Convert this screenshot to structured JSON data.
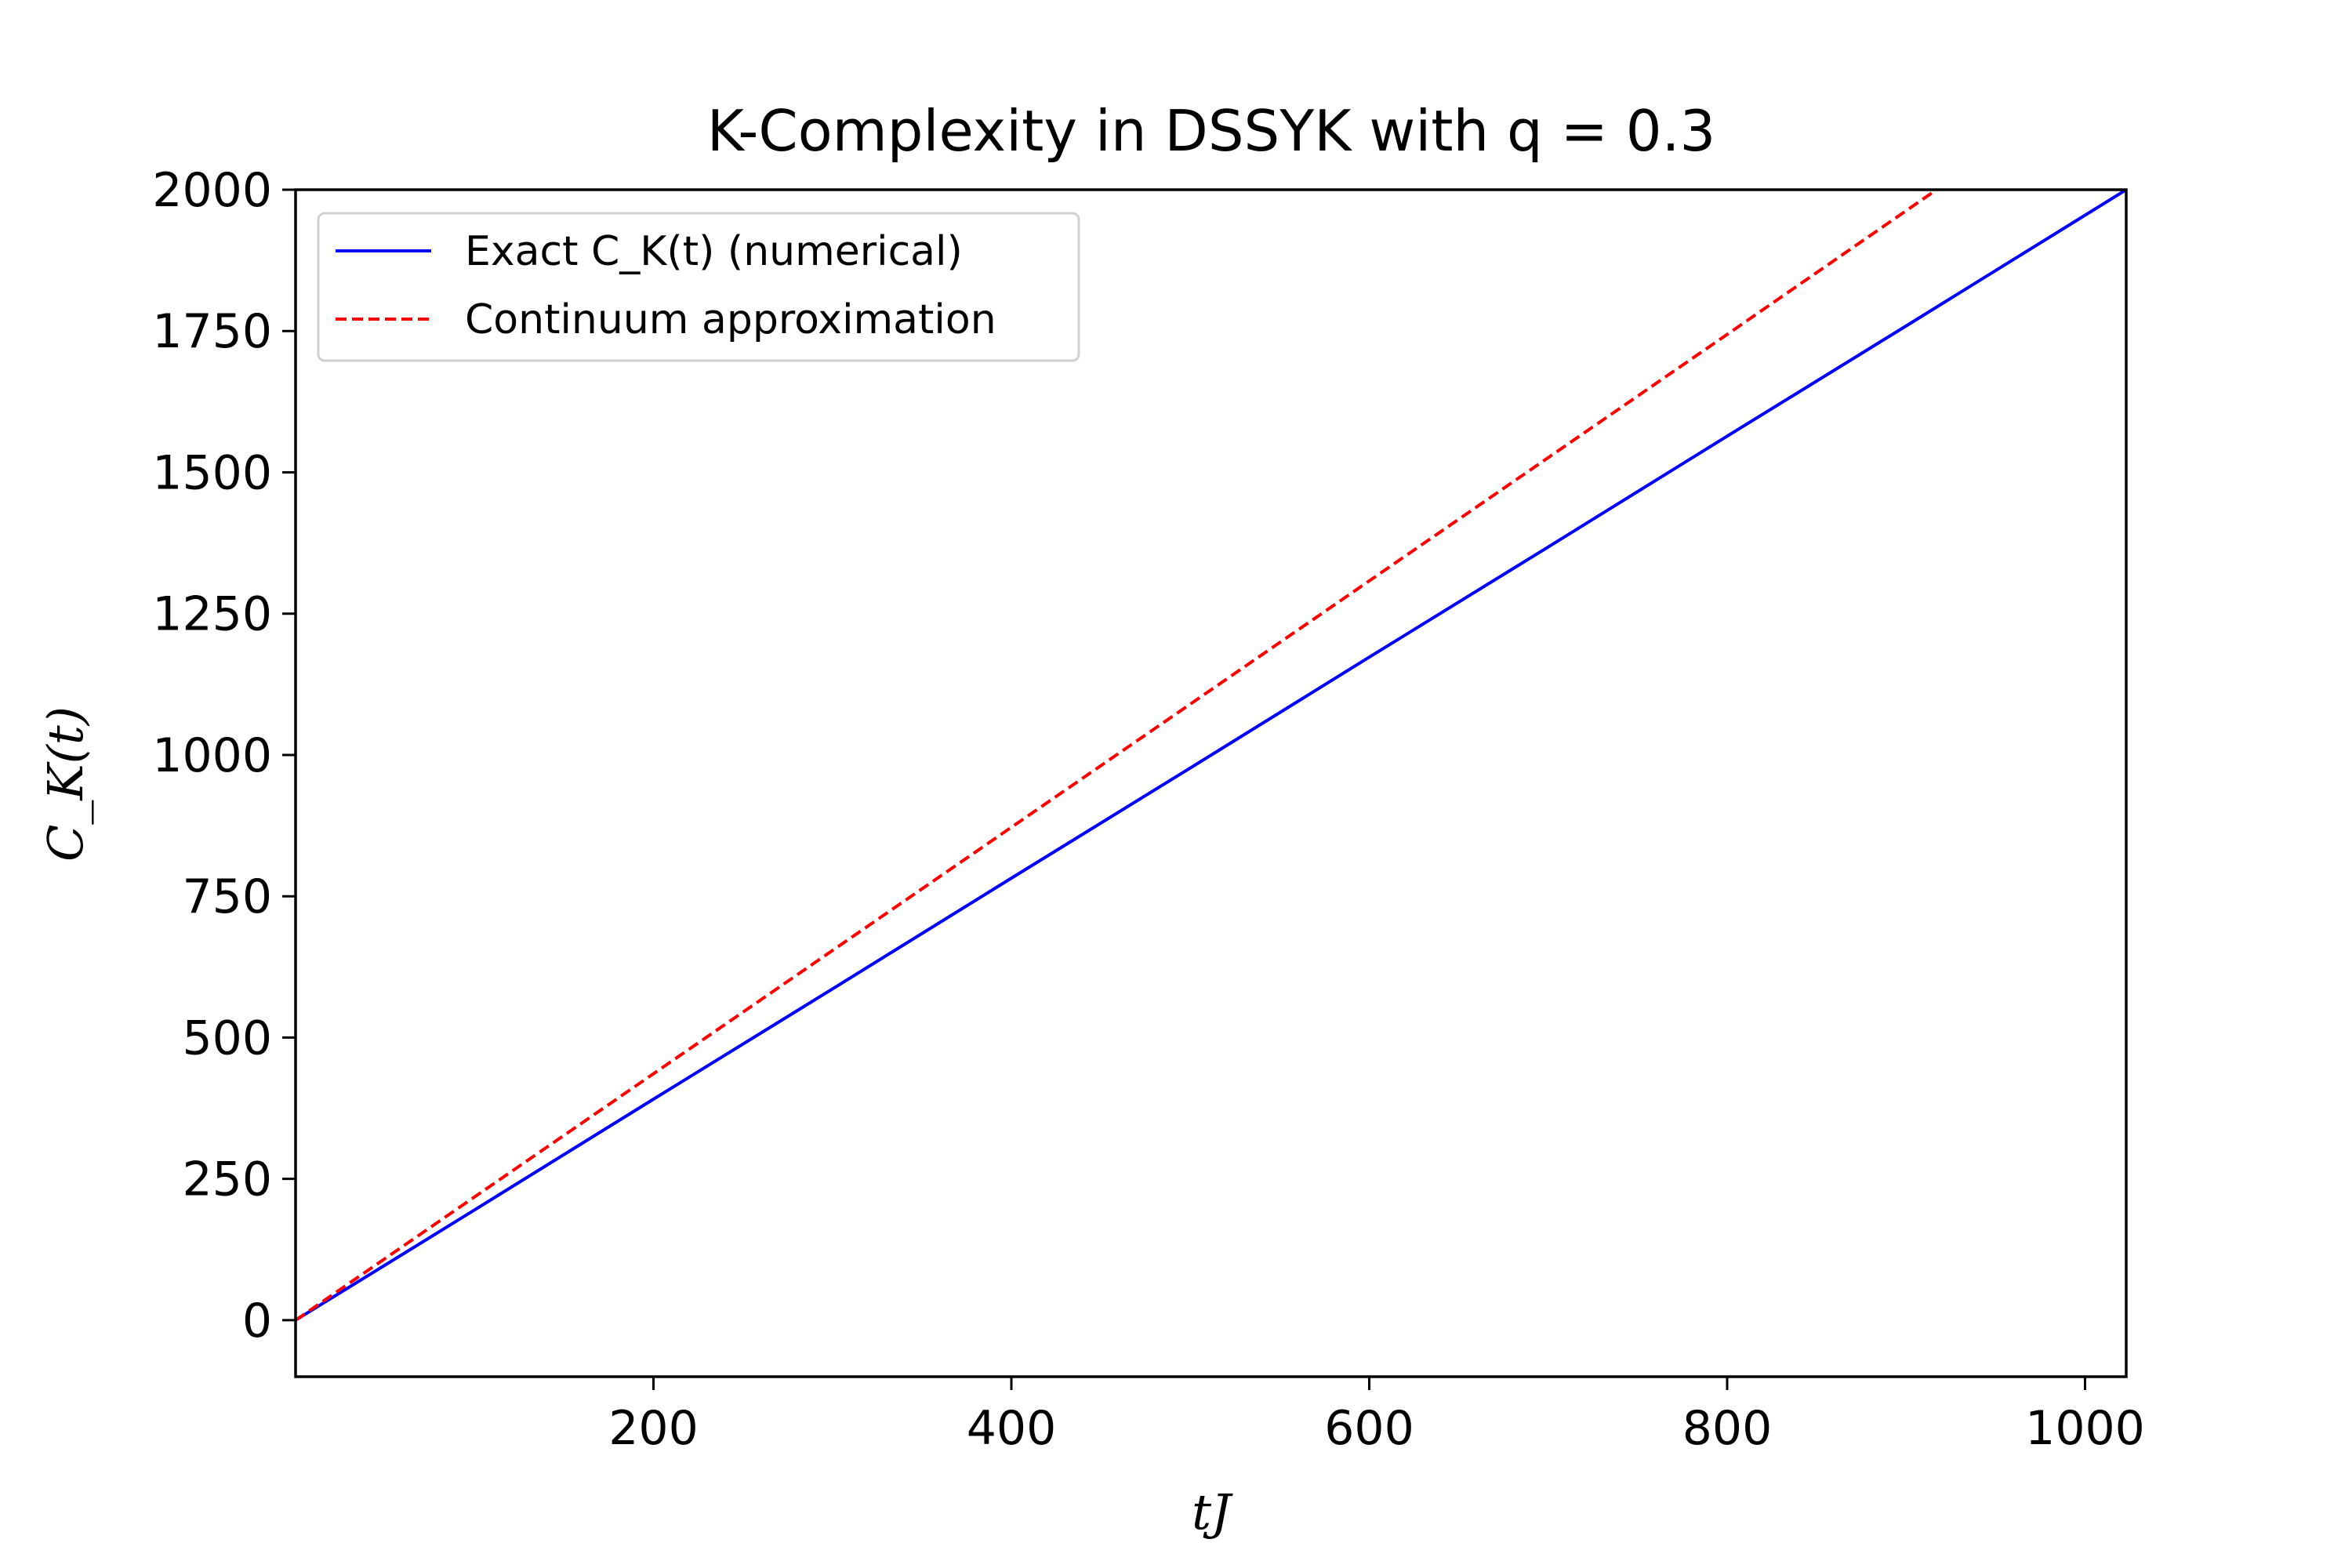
{
  "chart_data": {
    "type": "line",
    "title": "K-Complexity in DSSYK with q = 0.3",
    "xlabel": "tJ",
    "ylabel": "C_K(t)",
    "xlim": [
      0,
      1023
    ],
    "ylim": [
      -100,
      2000
    ],
    "xticks": [
      "200",
      "400",
      "600",
      "800",
      "1000"
    ],
    "yticks": [
      "0",
      "250",
      "500",
      "750",
      "1000",
      "1250",
      "1500",
      "1750",
      "2000"
    ],
    "grid": false,
    "legend_position": "top-left",
    "series": [
      {
        "name": "Exact C_K(t) (numerical)",
        "color": "#0000ff",
        "style": "solid",
        "x": [
          0,
          100,
          200,
          300,
          400,
          500,
          600,
          700,
          800,
          900,
          1023
        ],
        "y": [
          0,
          195,
          391,
          586,
          782,
          977,
          1173,
          1368,
          1564,
          1759,
          2000
        ]
      },
      {
        "name": "Continuum approximation",
        "color": "#ff0000",
        "style": "dashed",
        "x": [
          0,
          100,
          200,
          300,
          400,
          500,
          600,
          700,
          800,
          917
        ],
        "y": [
          0,
          218,
          436,
          654,
          872,
          1090,
          1308,
          1526,
          1744,
          2000
        ]
      }
    ]
  }
}
